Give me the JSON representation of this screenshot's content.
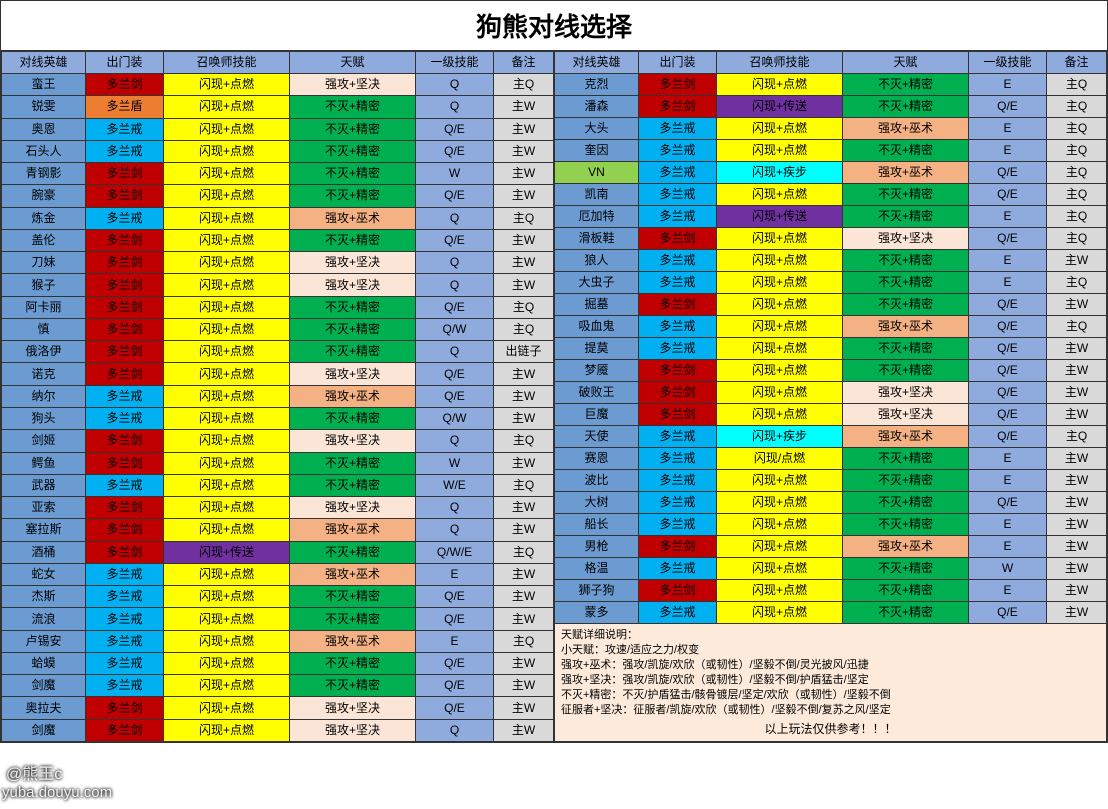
{
  "title": "狗熊对线选择",
  "headers": [
    "对线英雄",
    "出门装",
    "召唤师技能",
    "天赋",
    "一级技能",
    "备注"
  ],
  "colors": {
    "header": "#8faadc",
    "heroBlue": "#6b9bd1",
    "red": "#c00000",
    "blue": "#00b0f0",
    "orange": "#ed7d31",
    "yellow": "#ffff00",
    "purple": "#7030a0",
    "cyan": "#00ffff",
    "green": "#00b050",
    "runeOrange": "#f4b183",
    "paleOrange": "#fbe5d6",
    "limeGreen": "#92d050",
    "skillBlue": "#8faadc",
    "noteGrey": "#d9d9d9",
    "notesBg": "#fdeada"
  },
  "left": [
    {
      "hero": "蛮王",
      "item": "多兰剑",
      "itemC": "red",
      "summ": "闪现+点燃",
      "summC": "yellow",
      "rune": "强攻+坚决",
      "runeC": "paleOrange",
      "skill": "Q",
      "note": "主Q"
    },
    {
      "hero": "锐雯",
      "item": "多兰盾",
      "itemC": "orange",
      "summ": "闪现+点燃",
      "summC": "yellow",
      "rune": "不灭+精密",
      "runeC": "green",
      "skill": "Q",
      "note": "主W"
    },
    {
      "hero": "奥恩",
      "item": "多兰戒",
      "itemC": "blue",
      "summ": "闪现+点燃",
      "summC": "yellow",
      "rune": "不灭+精密",
      "runeC": "green",
      "skill": "Q/E",
      "note": "主W"
    },
    {
      "hero": "石头人",
      "item": "多兰戒",
      "itemC": "blue",
      "summ": "闪现+点燃",
      "summC": "yellow",
      "rune": "不灭+精密",
      "runeC": "green",
      "skill": "Q/E",
      "note": "主W"
    },
    {
      "hero": "青钢影",
      "item": "多兰剑",
      "itemC": "red",
      "summ": "闪现+点燃",
      "summC": "yellow",
      "rune": "不灭+精密",
      "runeC": "green",
      "skill": "W",
      "note": "主W"
    },
    {
      "hero": "腕豪",
      "item": "多兰剑",
      "itemC": "red",
      "summ": "闪现+点燃",
      "summC": "yellow",
      "rune": "不灭+精密",
      "runeC": "green",
      "skill": "Q/E",
      "note": "主W"
    },
    {
      "hero": "炼金",
      "item": "多兰戒",
      "itemC": "blue",
      "summ": "闪现+点燃",
      "summC": "yellow",
      "rune": "强攻+巫术",
      "runeC": "runeOrange",
      "skill": "Q",
      "note": "主Q"
    },
    {
      "hero": "盖伦",
      "item": "多兰剑",
      "itemC": "red",
      "summ": "闪现+点燃",
      "summC": "yellow",
      "rune": "不灭+精密",
      "runeC": "green",
      "skill": "Q/E",
      "note": "主W"
    },
    {
      "hero": "刀妹",
      "item": "多兰剑",
      "itemC": "red",
      "summ": "闪现+点燃",
      "summC": "yellow",
      "rune": "强攻+坚决",
      "runeC": "paleOrange",
      "skill": "Q",
      "note": "主W"
    },
    {
      "hero": "猴子",
      "item": "多兰剑",
      "itemC": "red",
      "summ": "闪现+点燃",
      "summC": "yellow",
      "rune": "强攻+坚决",
      "runeC": "paleOrange",
      "skill": "Q",
      "note": "主W"
    },
    {
      "hero": "阿卡丽",
      "item": "多兰剑",
      "itemC": "red",
      "summ": "闪现+点燃",
      "summC": "yellow",
      "rune": "不灭+精密",
      "runeC": "green",
      "skill": "Q/E",
      "note": "主Q"
    },
    {
      "hero": "慎",
      "item": "多兰剑",
      "itemC": "red",
      "summ": "闪现+点燃",
      "summC": "yellow",
      "rune": "不灭+精密",
      "runeC": "green",
      "skill": "Q/W",
      "note": "主Q"
    },
    {
      "hero": "俄洛伊",
      "item": "多兰剑",
      "itemC": "red",
      "summ": "闪现+点燃",
      "summC": "yellow",
      "rune": "不灭+精密",
      "runeC": "green",
      "skill": "Q",
      "note": "出链子"
    },
    {
      "hero": "诺克",
      "item": "多兰剑",
      "itemC": "red",
      "summ": "闪现+点燃",
      "summC": "yellow",
      "rune": "强攻+坚决",
      "runeC": "paleOrange",
      "skill": "Q/E",
      "note": "主W"
    },
    {
      "hero": "纳尔",
      "item": "多兰戒",
      "itemC": "blue",
      "summ": "闪现+点燃",
      "summC": "yellow",
      "rune": "强攻+巫术",
      "runeC": "runeOrange",
      "skill": "Q/E",
      "note": "主W"
    },
    {
      "hero": "狗头",
      "item": "多兰戒",
      "itemC": "blue",
      "summ": "闪现+点燃",
      "summC": "yellow",
      "rune": "不灭+精密",
      "runeC": "green",
      "skill": "Q/W",
      "note": "主W"
    },
    {
      "hero": "剑姬",
      "item": "多兰剑",
      "itemC": "red",
      "summ": "闪现+点燃",
      "summC": "yellow",
      "rune": "强攻+坚决",
      "runeC": "paleOrange",
      "skill": "Q",
      "note": "主Q"
    },
    {
      "hero": "鳄鱼",
      "item": "多兰剑",
      "itemC": "red",
      "summ": "闪现+点燃",
      "summC": "yellow",
      "rune": "不灭+精密",
      "runeC": "green",
      "skill": "W",
      "note": "主W"
    },
    {
      "hero": "武器",
      "item": "多兰戒",
      "itemC": "blue",
      "summ": "闪现+点燃",
      "summC": "yellow",
      "rune": "不灭+精密",
      "runeC": "green",
      "skill": "W/E",
      "note": "主Q"
    },
    {
      "hero": "亚索",
      "item": "多兰剑",
      "itemC": "red",
      "summ": "闪现+点燃",
      "summC": "yellow",
      "rune": "强攻+坚决",
      "runeC": "paleOrange",
      "skill": "Q",
      "note": "主W"
    },
    {
      "hero": "塞拉斯",
      "item": "多兰剑",
      "itemC": "red",
      "summ": "闪现+点燃",
      "summC": "yellow",
      "rune": "强攻+巫术",
      "runeC": "runeOrange",
      "skill": "Q",
      "note": "主W"
    },
    {
      "hero": "酒桶",
      "item": "多兰剑",
      "itemC": "red",
      "summ": "闪现+传送",
      "summC": "purple",
      "rune": "不灭+精密",
      "runeC": "green",
      "skill": "Q/W/E",
      "note": "主Q"
    },
    {
      "hero": "蛇女",
      "item": "多兰戒",
      "itemC": "blue",
      "summ": "闪现+点燃",
      "summC": "yellow",
      "rune": "强攻+巫术",
      "runeC": "runeOrange",
      "skill": "E",
      "note": "主W"
    },
    {
      "hero": "杰斯",
      "item": "多兰戒",
      "itemC": "blue",
      "summ": "闪现+点燃",
      "summC": "yellow",
      "rune": "不灭+精密",
      "runeC": "green",
      "skill": "Q/E",
      "note": "主W"
    },
    {
      "hero": "流浪",
      "item": "多兰戒",
      "itemC": "blue",
      "summ": "闪现+点燃",
      "summC": "yellow",
      "rune": "不灭+精密",
      "runeC": "green",
      "skill": "Q/E",
      "note": "主W"
    },
    {
      "hero": "卢锡安",
      "item": "多兰戒",
      "itemC": "blue",
      "summ": "闪现+点燃",
      "summC": "yellow",
      "rune": "强攻+巫术",
      "runeC": "runeOrange",
      "skill": "E",
      "note": "主Q"
    },
    {
      "hero": "蛤蟆",
      "item": "多兰戒",
      "itemC": "blue",
      "summ": "闪现+点燃",
      "summC": "yellow",
      "rune": "不灭+精密",
      "runeC": "green",
      "skill": "Q/E",
      "note": "主W"
    },
    {
      "hero": "剑魔",
      "item": "多兰戒",
      "itemC": "blue",
      "summ": "闪现+点燃",
      "summC": "yellow",
      "rune": "不灭+精密",
      "runeC": "green",
      "skill": "Q/E",
      "note": "主W"
    },
    {
      "hero": "奥拉夫",
      "item": "多兰剑",
      "itemC": "red",
      "summ": "闪现+点燃",
      "summC": "yellow",
      "rune": "强攻+坚决",
      "runeC": "paleOrange",
      "skill": "Q/E",
      "note": "主W"
    },
    {
      "hero": "剑魔",
      "item": "多兰剑",
      "itemC": "red",
      "summ": "闪现+点燃",
      "summC": "yellow",
      "rune": "强攻+坚决",
      "runeC": "paleOrange",
      "skill": "Q",
      "note": "主W"
    }
  ],
  "right": [
    {
      "hero": "克烈",
      "item": "多兰剑",
      "itemC": "red",
      "summ": "闪现+点燃",
      "summC": "yellow",
      "rune": "不灭+精密",
      "runeC": "green",
      "skill": "E",
      "note": "主Q"
    },
    {
      "hero": "潘森",
      "item": "多兰剑",
      "itemC": "red",
      "summ": "闪现+传送",
      "summC": "purple",
      "rune": "不灭+精密",
      "runeC": "green",
      "skill": "Q/E",
      "note": "主Q"
    },
    {
      "hero": "大头",
      "item": "多兰戒",
      "itemC": "blue",
      "summ": "闪现+点燃",
      "summC": "yellow",
      "rune": "强攻+巫术",
      "runeC": "runeOrange",
      "skill": "E",
      "note": "主Q"
    },
    {
      "hero": "奎因",
      "item": "多兰戒",
      "itemC": "blue",
      "summ": "闪现+点燃",
      "summC": "yellow",
      "rune": "不灭+精密",
      "runeC": "green",
      "skill": "E",
      "note": "主Q"
    },
    {
      "hero": "VN",
      "heroC": "limeGreen",
      "item": "多兰戒",
      "itemC": "blue",
      "summ": "闪现+疾步",
      "summC": "cyan",
      "rune": "强攻+巫术",
      "runeC": "runeOrange",
      "skill": "Q/E",
      "note": "主Q"
    },
    {
      "hero": "凯南",
      "item": "多兰戒",
      "itemC": "blue",
      "summ": "闪现+点燃",
      "summC": "yellow",
      "rune": "不灭+精密",
      "runeC": "green",
      "skill": "Q/E",
      "note": "主Q"
    },
    {
      "hero": "厄加特",
      "item": "多兰戒",
      "itemC": "blue",
      "summ": "闪现+传送",
      "summC": "purple",
      "rune": "不灭+精密",
      "runeC": "green",
      "skill": "E",
      "note": "主Q"
    },
    {
      "hero": "滑板鞋",
      "item": "多兰剑",
      "itemC": "red",
      "summ": "闪现+点燃",
      "summC": "yellow",
      "rune": "强攻+坚决",
      "runeC": "paleOrange",
      "skill": "Q/E",
      "note": "主Q"
    },
    {
      "hero": "狼人",
      "item": "多兰戒",
      "itemC": "blue",
      "summ": "闪现+点燃",
      "summC": "yellow",
      "rune": "不灭+精密",
      "runeC": "green",
      "skill": "E",
      "note": "主W"
    },
    {
      "hero": "大虫子",
      "item": "多兰戒",
      "itemC": "blue",
      "summ": "闪现+点燃",
      "summC": "yellow",
      "rune": "不灭+精密",
      "runeC": "green",
      "skill": "E",
      "note": "主Q"
    },
    {
      "hero": "掘墓",
      "item": "多兰剑",
      "itemC": "red",
      "summ": "闪现+点燃",
      "summC": "yellow",
      "rune": "不灭+精密",
      "runeC": "green",
      "skill": "Q/E",
      "note": "主W"
    },
    {
      "hero": "吸血鬼",
      "item": "多兰戒",
      "itemC": "blue",
      "summ": "闪现+点燃",
      "summC": "yellow",
      "rune": "强攻+巫术",
      "runeC": "runeOrange",
      "skill": "Q/E",
      "note": "主Q"
    },
    {
      "hero": "提莫",
      "item": "多兰戒",
      "itemC": "blue",
      "summ": "闪现+点燃",
      "summC": "yellow",
      "rune": "不灭+精密",
      "runeC": "green",
      "skill": "Q/E",
      "note": "主W"
    },
    {
      "hero": "梦魇",
      "item": "多兰剑",
      "itemC": "red",
      "summ": "闪现+点燃",
      "summC": "yellow",
      "rune": "不灭+精密",
      "runeC": "green",
      "skill": "Q/E",
      "note": "主W"
    },
    {
      "hero": "破败王",
      "item": "多兰剑",
      "itemC": "red",
      "summ": "闪现+点燃",
      "summC": "yellow",
      "rune": "强攻+坚决",
      "runeC": "paleOrange",
      "skill": "Q/E",
      "note": "主W"
    },
    {
      "hero": "巨魔",
      "item": "多兰剑",
      "itemC": "red",
      "summ": "闪现+点燃",
      "summC": "yellow",
      "rune": "强攻+坚决",
      "runeC": "paleOrange",
      "skill": "Q/E",
      "note": "主W"
    },
    {
      "hero": "天使",
      "item": "多兰戒",
      "itemC": "blue",
      "summ": "闪现+疾步",
      "summC": "cyan",
      "rune": "强攻+巫术",
      "runeC": "runeOrange",
      "skill": "Q/E",
      "note": "主Q"
    },
    {
      "hero": "赛恩",
      "item": "多兰戒",
      "itemC": "blue",
      "summ": "闪现/点燃",
      "summC": "yellow",
      "rune": "不灭+精密",
      "runeC": "green",
      "skill": "E",
      "note": "主W"
    },
    {
      "hero": "波比",
      "item": "多兰戒",
      "itemC": "blue",
      "summ": "闪现+点燃",
      "summC": "yellow",
      "rune": "不灭+精密",
      "runeC": "green",
      "skill": "E",
      "note": "主W"
    },
    {
      "hero": "大树",
      "item": "多兰戒",
      "itemC": "blue",
      "summ": "闪现+点燃",
      "summC": "yellow",
      "rune": "不灭+精密",
      "runeC": "green",
      "skill": "Q/E",
      "note": "主W"
    },
    {
      "hero": "船长",
      "item": "多兰戒",
      "itemC": "blue",
      "summ": "闪现+点燃",
      "summC": "yellow",
      "rune": "不灭+精密",
      "runeC": "green",
      "skill": "E",
      "note": "主W"
    },
    {
      "hero": "男枪",
      "item": "多兰剑",
      "itemC": "red",
      "summ": "闪现+点燃",
      "summC": "yellow",
      "rune": "强攻+巫术",
      "runeC": "runeOrange",
      "skill": "E",
      "note": "主W"
    },
    {
      "hero": "格温",
      "item": "多兰戒",
      "itemC": "blue",
      "summ": "闪现+点燃",
      "summC": "yellow",
      "rune": "不灭+精密",
      "runeC": "green",
      "skill": "W",
      "note": "主W"
    },
    {
      "hero": "狮子狗",
      "item": "多兰剑",
      "itemC": "red",
      "summ": "闪现+点燃",
      "summC": "yellow",
      "rune": "不灭+精密",
      "runeC": "green",
      "skill": "E",
      "note": "主W"
    },
    {
      "hero": "蒙多",
      "item": "多兰戒",
      "itemC": "blue",
      "summ": "闪现+点燃",
      "summC": "yellow",
      "rune": "不灭+精密",
      "runeC": "green",
      "skill": "Q/E",
      "note": "主W"
    }
  ],
  "notes": {
    "title": "天赋详细说明：",
    "lines": [
      "小天赋：攻速/适应之力/权变",
      "强攻+巫术：强攻/凯旋/欢欣（或韧性）/坚毅不倒/灵光披风/迅捷",
      "强攻+坚决：强攻/凯旋/欢欣（或韧性）/坚毅不倒/护盾猛击/坚定",
      "不灭+精密：不灭/护盾猛击/骸骨镀层/坚定/欢欣（或韧性）/坚毅不倒",
      "征服者+坚决：征服者/凯旋/欢欣（或韧性）/坚毅不倒/复苏之风/坚定"
    ],
    "footer": "以上玩法仅供参考！！！"
  },
  "watermark1": "@熊王c",
  "watermark2": "yuba.douyu.com"
}
